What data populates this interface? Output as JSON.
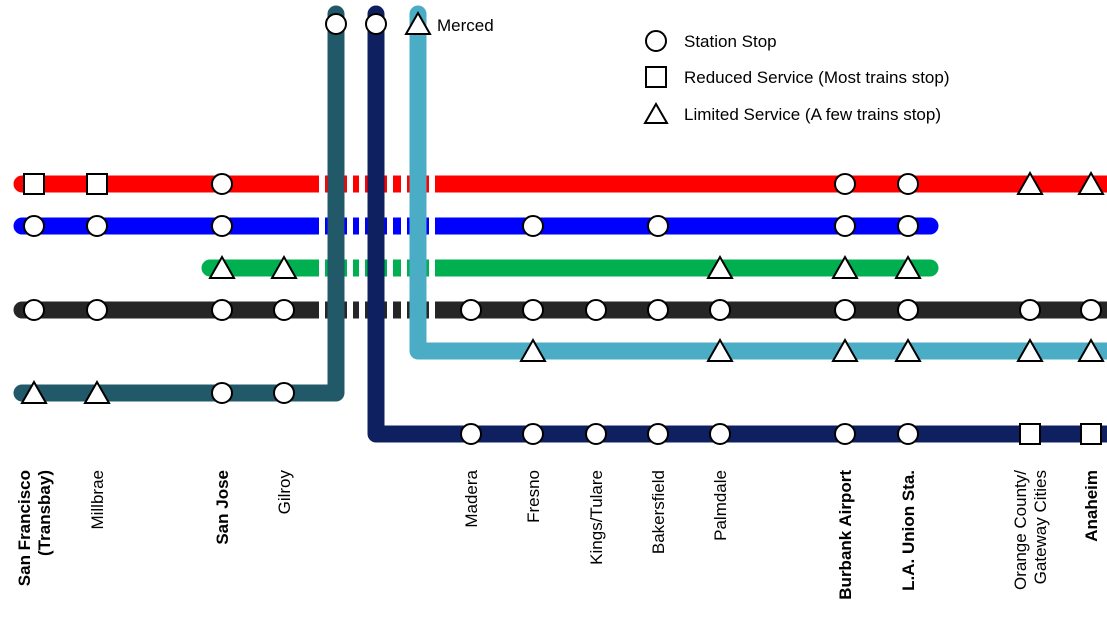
{
  "legend": {
    "station_stop": "Station Stop",
    "reduced_service": "Reduced Service (Most trains stop)",
    "limited_service": "Limited Service (A few trains stop)"
  },
  "north_label": "Merced",
  "stations": [
    {
      "key": "sf",
      "line1": "San Francisco",
      "line2": "(Transbay)",
      "bold": true
    },
    {
      "key": "millbrae",
      "line1": "Millbrae",
      "bold": false
    },
    {
      "key": "sanjose",
      "line1": "San Jose",
      "bold": true
    },
    {
      "key": "gilroy",
      "line1": "Gilroy",
      "bold": false
    },
    {
      "key": "madera",
      "line1": "Madera",
      "bold": false
    },
    {
      "key": "fresno",
      "line1": "Fresno",
      "bold": false
    },
    {
      "key": "kings",
      "line1": "Kings/Tulare",
      "bold": false
    },
    {
      "key": "bakersfield",
      "line1": "Bakersfield",
      "bold": false
    },
    {
      "key": "palmdale",
      "line1": "Palmdale",
      "bold": false
    },
    {
      "key": "burbank",
      "line1": "Burbank Airport",
      "bold": true
    },
    {
      "key": "lau",
      "line1": "L.A. Union Sta.",
      "bold": true
    },
    {
      "key": "orange",
      "line1": "Orange County/",
      "line2": "Gateway Cities",
      "bold": false
    },
    {
      "key": "anaheim",
      "line1": "Anaheim",
      "bold": true
    }
  ],
  "lines": [
    {
      "name": "red",
      "color": "#ff0000",
      "stops": {
        "sf": "reduced",
        "millbrae": "reduced",
        "sanjose": "station",
        "burbank": "station",
        "lau": "station",
        "orange": "limited",
        "anaheim": "limited"
      }
    },
    {
      "name": "blue",
      "color": "#0000ff",
      "stops": {
        "sf": "station",
        "millbrae": "station",
        "sanjose": "station",
        "fresno": "station",
        "bakersfield": "station",
        "burbank": "station",
        "lau": "station"
      }
    },
    {
      "name": "green",
      "color": "#00b050",
      "stops": {
        "sanjose": "limited",
        "gilroy": "limited",
        "palmdale": "limited",
        "burbank": "limited",
        "lau": "limited"
      }
    },
    {
      "name": "black",
      "color": "#262626",
      "stops": {
        "sf": "station",
        "millbrae": "station",
        "sanjose": "station",
        "gilroy": "station",
        "madera": "station",
        "fresno": "station",
        "kings": "station",
        "bakersfield": "station",
        "palmdale": "station",
        "burbank": "station",
        "lau": "station",
        "orange": "station",
        "anaheim": "station"
      }
    },
    {
      "name": "light-blue",
      "color": "#4bacc6",
      "stops": {
        "merced": "limited",
        "fresno": "limited",
        "palmdale": "limited",
        "burbank": "limited",
        "lau": "limited",
        "orange": "limited",
        "anaheim": "limited"
      }
    },
    {
      "name": "teal",
      "color": "#215968",
      "stops": {
        "merced": "station",
        "sf": "limited",
        "millbrae": "limited",
        "sanjose": "station",
        "gilroy": "station"
      }
    },
    {
      "name": "navy",
      "color": "#0f2060",
      "stops": {
        "merced": "station",
        "madera": "station",
        "fresno": "station",
        "kings": "station",
        "bakersfield": "station",
        "palmdale": "station",
        "burbank": "station",
        "lau": "station",
        "orange": "reduced",
        "anaheim": "reduced"
      }
    }
  ]
}
